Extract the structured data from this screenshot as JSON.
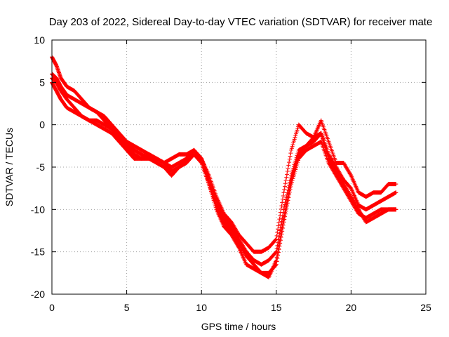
{
  "chart_data": {
    "type": "scatter",
    "title": "Day 203 of 2022, Sidereal Day-to-day VTEC variation (SDTVAR) for receiver mate",
    "xlabel": "GPS time / hours",
    "ylabel": "SDTVAR / TECUs",
    "xlim": [
      0,
      25
    ],
    "ylim": [
      -20,
      10
    ],
    "xticks": [
      0,
      5,
      10,
      15,
      20,
      25
    ],
    "yticks": [
      -20,
      -15,
      -10,
      -5,
      0,
      5,
      10
    ],
    "xtick_labels": [
      "0",
      "5",
      "10",
      "15",
      "20",
      "25"
    ],
    "ytick_labels": [
      "-20",
      "-15",
      "-10",
      "-5",
      "0",
      "5",
      "10"
    ],
    "grid": true,
    "marker": "+",
    "color": "#ff0000",
    "series": [
      {
        "x": [
          0.0,
          0.3,
          0.6,
          1.0,
          1.5,
          2.0,
          2.5,
          3.0,
          3.5,
          4.0,
          4.5,
          5.0,
          5.5,
          6.0,
          6.5,
          7.0,
          7.5,
          8.0,
          8.5,
          9.0,
          9.5,
          10.0,
          10.5,
          11.0,
          11.5,
          12.0,
          12.5,
          13.0,
          13.5,
          14.0,
          14.5,
          15.0,
          15.5,
          16.0,
          16.5,
          17.0,
          17.5,
          18.0,
          18.5,
          19.0,
          19.5,
          20.0,
          20.5,
          21.0,
          21.5,
          22.0,
          22.5,
          23.0
        ],
        "y": [
          8.0,
          7.0,
          5.5,
          4.5,
          4.0,
          3.0,
          2.0,
          1.5,
          0.5,
          -0.5,
          -1.5,
          -2.0,
          -3.0,
          -3.5,
          -4.0,
          -4.0,
          -4.5,
          -4.0,
          -3.5,
          -3.5,
          -3.0,
          -4.0,
          -6.0,
          -8.5,
          -10.5,
          -11.5,
          -13.0,
          -14.0,
          -15.0,
          -15.0,
          -14.5,
          -13.5,
          -8.0,
          -3.0,
          0.0,
          -1.0,
          -1.5,
          0.5,
          -2.0,
          -4.5,
          -4.5,
          -6.0,
          -8.0,
          -8.5,
          -8.0,
          -8.0,
          -7.0,
          -7.0
        ]
      },
      {
        "x": [
          0.0,
          0.3,
          0.6,
          1.0,
          1.5,
          2.0,
          2.5,
          3.0,
          3.5,
          4.0,
          4.5,
          5.0,
          5.5,
          6.0,
          6.5,
          7.0,
          7.5,
          8.0,
          8.5,
          9.0,
          9.5,
          10.0,
          10.5,
          11.0,
          11.5,
          12.0,
          12.5,
          13.0,
          13.5,
          14.0,
          14.5,
          15.0,
          15.5,
          16.0,
          16.5,
          17.0,
          17.5,
          18.0,
          18.5,
          19.0,
          19.5,
          20.0,
          20.5,
          21.0,
          21.5,
          22.0,
          22.5,
          23.0
        ],
        "y": [
          6.0,
          5.5,
          4.5,
          3.5,
          3.0,
          2.5,
          2.0,
          1.5,
          1.0,
          0.0,
          -1.0,
          -2.0,
          -2.5,
          -3.0,
          -3.5,
          -4.0,
          -4.5,
          -5.0,
          -4.5,
          -4.0,
          -3.0,
          -4.0,
          -6.5,
          -9.0,
          -11.0,
          -12.0,
          -13.5,
          -15.0,
          -16.0,
          -16.5,
          -16.0,
          -15.0,
          -10.0,
          -6.0,
          -3.0,
          -2.5,
          -2.0,
          -1.0,
          -3.5,
          -5.0,
          -6.5,
          -7.5,
          -9.5,
          -10.0,
          -9.5,
          -9.0,
          -8.5,
          -8.0
        ]
      },
      {
        "x": [
          0.0,
          0.3,
          0.6,
          1.0,
          1.5,
          2.0,
          2.5,
          3.0,
          3.5,
          4.0,
          4.5,
          5.0,
          5.5,
          6.0,
          6.5,
          7.0,
          7.5,
          8.0,
          8.5,
          9.0,
          9.5,
          10.0,
          10.5,
          11.0,
          11.5,
          12.0,
          12.5,
          13.0,
          13.5,
          14.0,
          14.5,
          15.0,
          15.5,
          16.0,
          16.5,
          17.0,
          17.5,
          18.0,
          18.5,
          19.0,
          19.5,
          20.0,
          20.5,
          21.0,
          21.5,
          22.0,
          22.5,
          23.0
        ],
        "y": [
          5.5,
          5.0,
          4.0,
          3.0,
          2.0,
          1.0,
          0.5,
          0.5,
          0.0,
          -0.5,
          -1.5,
          -2.5,
          -3.5,
          -4.0,
          -3.5,
          -4.0,
          -4.5,
          -5.5,
          -5.0,
          -4.5,
          -3.5,
          -4.5,
          -7.0,
          -9.5,
          -11.5,
          -12.5,
          -14.0,
          -15.5,
          -16.5,
          -17.5,
          -17.5,
          -16.5,
          -11.5,
          -7.0,
          -4.0,
          -3.0,
          -2.5,
          -2.0,
          -4.5,
          -6.0,
          -7.5,
          -9.0,
          -10.5,
          -11.0,
          -10.5,
          -10.0,
          -10.0,
          -10.0
        ]
      },
      {
        "x": [
          0.0,
          0.3,
          0.6,
          1.0,
          1.5,
          2.0,
          2.5,
          3.0,
          3.5,
          4.0,
          4.5,
          5.0,
          5.5,
          6.0,
          6.5,
          7.0,
          7.5,
          8.0,
          8.5,
          9.0,
          9.5,
          10.0,
          10.5,
          11.0,
          11.5,
          12.0,
          12.5,
          13.0,
          13.5,
          14.0,
          14.5,
          15.0,
          15.5,
          16.0,
          16.5,
          17.0,
          17.5,
          18.0,
          18.5,
          19.0,
          19.5,
          20.0,
          20.5,
          21.0,
          21.5,
          22.0,
          22.5,
          23.0
        ],
        "y": [
          5.0,
          4.0,
          3.0,
          2.0,
          1.5,
          1.0,
          0.5,
          0.0,
          -0.5,
          -1.0,
          -2.0,
          -3.0,
          -4.0,
          -4.0,
          -4.0,
          -4.5,
          -5.0,
          -6.0,
          -5.0,
          -4.0,
          -3.0,
          -4.0,
          -7.0,
          -10.0,
          -12.0,
          -13.0,
          -14.5,
          -16.5,
          -17.0,
          -17.5,
          -18.0,
          -16.0,
          -11.0,
          -6.5,
          -3.5,
          -2.5,
          -1.5,
          -1.0,
          -4.0,
          -5.5,
          -7.0,
          -8.5,
          -10.0,
          -11.5,
          -11.0,
          -10.5,
          -10.0,
          -10.0
        ]
      }
    ]
  }
}
